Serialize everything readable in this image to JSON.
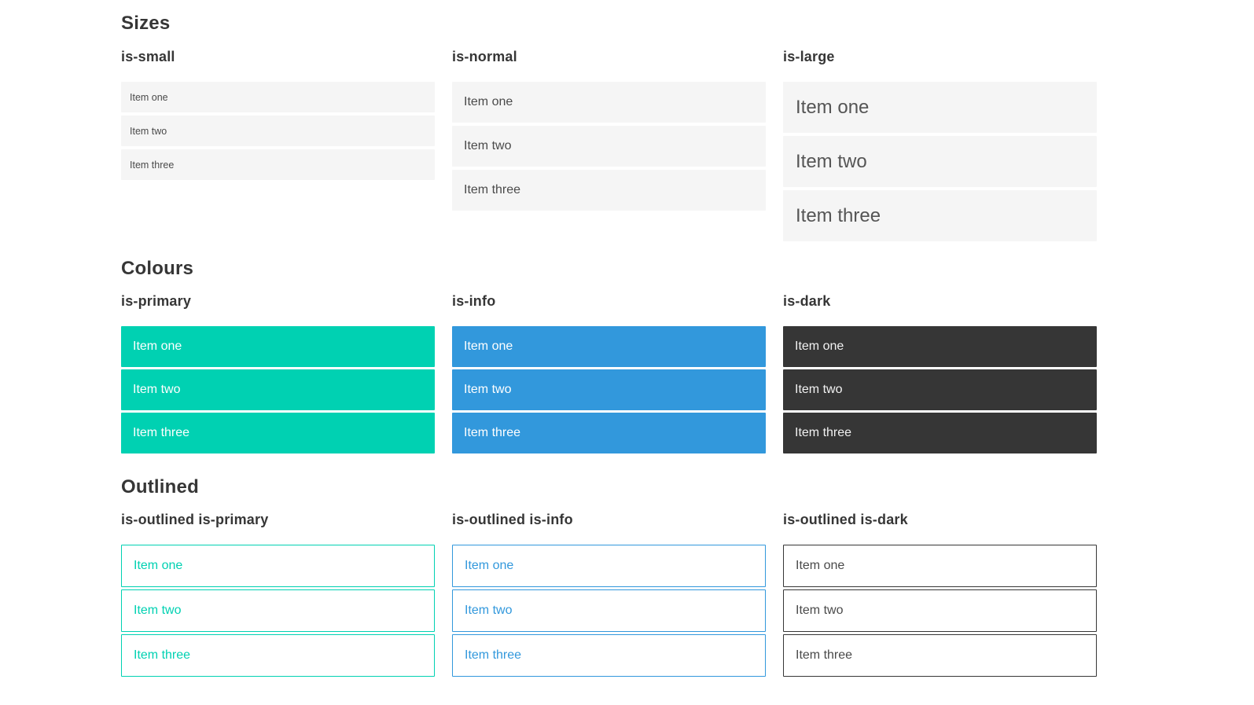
{
  "colors": {
    "primary": "#00d1b2",
    "info": "#3298dc",
    "dark": "#363636",
    "item_bg": "#f5f5f5",
    "text": "#4a4a4a",
    "heading": "#363636"
  },
  "sections": [
    {
      "title": "Sizes",
      "columns": [
        {
          "heading": "is-small",
          "items": [
            "Item one",
            "Item two",
            "Item three"
          ]
        },
        {
          "heading": "is-normal",
          "items": [
            "Item one",
            "Item two",
            "Item three"
          ]
        },
        {
          "heading": "is-large",
          "items": [
            "Item one",
            "Item two",
            "Item three"
          ]
        }
      ]
    },
    {
      "title": "Colours",
      "columns": [
        {
          "heading": "is-primary",
          "items": [
            "Item one",
            "Item two",
            "Item three"
          ]
        },
        {
          "heading": "is-info",
          "items": [
            "Item one",
            "Item two",
            "Item three"
          ]
        },
        {
          "heading": "is-dark",
          "items": [
            "Item one",
            "Item two",
            "Item three"
          ]
        }
      ]
    },
    {
      "title": "Outlined",
      "columns": [
        {
          "heading": "is-outlined is-primary",
          "items": [
            "Item one",
            "Item two",
            "Item three"
          ]
        },
        {
          "heading": "is-outlined is-info",
          "items": [
            "Item one",
            "Item two",
            "Item three"
          ]
        },
        {
          "heading": "is-outlined is-dark",
          "items": [
            "Item one",
            "Item two",
            "Item three"
          ]
        }
      ]
    }
  ]
}
